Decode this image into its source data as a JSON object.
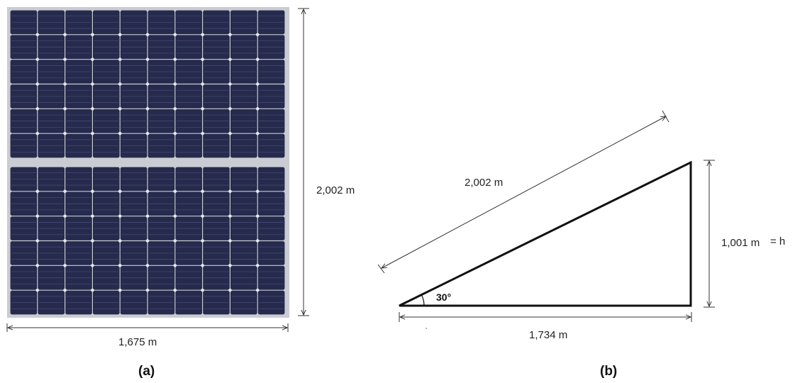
{
  "panel_a": {
    "width_label": "1,675 m",
    "height_label": "2,002 m",
    "caption": "(a)",
    "cell_grid": {
      "modules": 2,
      "columns": 10,
      "rows_per_module": 6
    },
    "colors": {
      "frame": "#c9ccd2",
      "cell": "#262a4c",
      "cell_line": "#4a4f78",
      "node": "#e8eaf2"
    }
  },
  "panel_b": {
    "hypotenuse_label": "2,002 m",
    "base_label": "1,734 m",
    "height_label": "1,001 m",
    "height_symbol": "= h",
    "angle_label": "30°",
    "caption": "(b)"
  }
}
